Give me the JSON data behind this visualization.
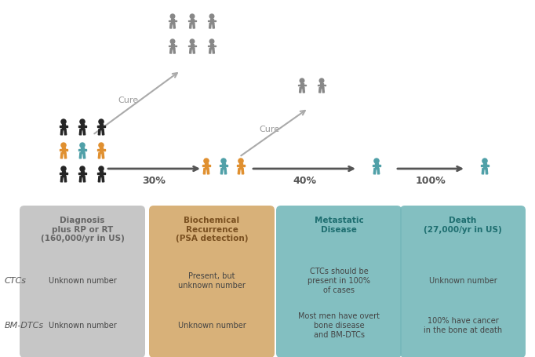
{
  "bg_color": "#ffffff",
  "box_colors": [
    "#c0c0c0",
    "#d4a96a",
    "#76b8bb",
    "#76b8bb"
  ],
  "box_titles": [
    "Diagnosis\nplus RP or RT\n(160,000/yr in US)",
    "Biochemical\nRecurrence\n(PSA detection)",
    "Metastatic\nDisease",
    "Death\n(27,000/yr in US)"
  ],
  "box_title_colors": [
    "#666666",
    "#7a5020",
    "#1e6e70",
    "#1e6e70"
  ],
  "box_contents": [
    [
      "Unknown number",
      "Unknown number"
    ],
    [
      "Present, but\nunknown number",
      "Unknown number"
    ],
    [
      "CTCs should be\npresent in 100%\nof cases",
      "Most men have overt\nbone disease\nand BM-DTCs"
    ],
    [
      "Unknown number",
      "100% have cancer\nin the bone at death"
    ]
  ],
  "left_labels": [
    "CTCs",
    "BM-DTCs"
  ],
  "arrow_pcts": [
    "30%",
    "40%",
    "100%"
  ],
  "cure_label": "Cure",
  "person_colors": {
    "black": "#252525",
    "orange": "#e09030",
    "teal": "#50a0a8",
    "gray": "#888888"
  },
  "text_color_box": "#444444",
  "arrow_color": "#555555",
  "cure_arrow_color": "#aaaaaa",
  "cure_text_color": "#999999"
}
